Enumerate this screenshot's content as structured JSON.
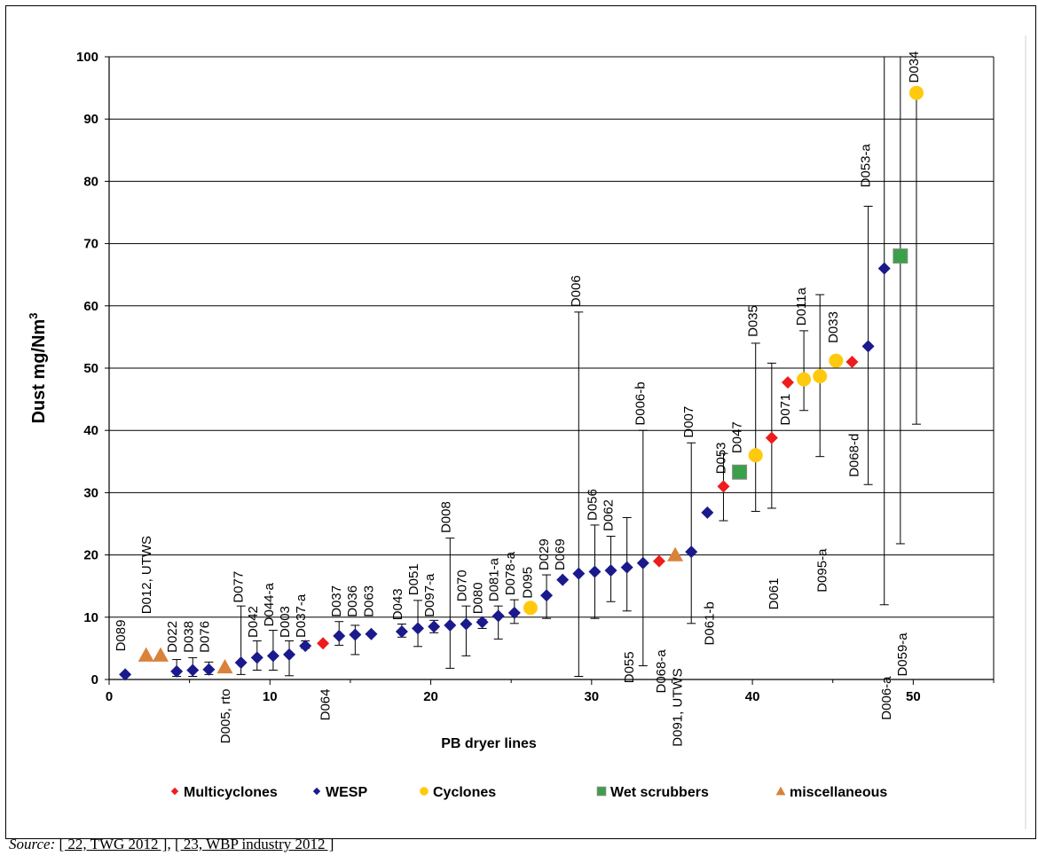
{
  "chart_data": {
    "type": "scatter",
    "xlabel": "PB dryer lines",
    "ylabel": "Dust mg/Nm",
    "ylabel_sup": "3",
    "xlim": [
      0,
      55
    ],
    "ylim": [
      0,
      100
    ],
    "xticks": [
      0,
      10,
      20,
      30,
      40,
      50
    ],
    "yticks": [
      0,
      10,
      20,
      30,
      40,
      50,
      60,
      70,
      80,
      90,
      100
    ],
    "grid": "horizontal",
    "legend_position": "bottom",
    "categories": [
      {
        "key": "multicyclones",
        "name": "Multicyclones",
        "marker": "diamond",
        "color": "#ee1c1c"
      },
      {
        "key": "wesp",
        "name": "WESP",
        "marker": "diamond",
        "color": "#1a1a8c"
      },
      {
        "key": "cyclones",
        "name": "Cyclones",
        "marker": "circle",
        "color": "#ffc90e"
      },
      {
        "key": "wet",
        "name": "Wet scrubbers",
        "marker": "square",
        "color": "#3aa04a"
      },
      {
        "key": "misc",
        "name": "miscellaneous",
        "marker": "triangle",
        "color": "#d9823b"
      }
    ],
    "points": [
      {
        "x": 1,
        "y": 0.8,
        "cat": "wesp"
      },
      {
        "x": 2.3,
        "y": 3.9,
        "cat": "misc"
      },
      {
        "x": 3.2,
        "y": 3.9,
        "cat": "misc"
      },
      {
        "x": 4.2,
        "y": 1.3,
        "cat": "wesp",
        "err": [
          0.5,
          3.2
        ]
      },
      {
        "x": 5.2,
        "y": 1.5,
        "cat": "wesp",
        "err": [
          0.5,
          3.5
        ]
      },
      {
        "x": 6.2,
        "y": 1.6,
        "cat": "wesp",
        "err": [
          0.8,
          2.8
        ]
      },
      {
        "x": 7.2,
        "y": 2.0,
        "cat": "misc"
      },
      {
        "x": 8.2,
        "y": 2.7,
        "cat": "wesp",
        "err": [
          0.8,
          11.8
        ]
      },
      {
        "x": 9.2,
        "y": 3.5,
        "cat": "wesp",
        "err": [
          1.5,
          6.2
        ]
      },
      {
        "x": 10.2,
        "y": 3.8,
        "cat": "wesp",
        "err": [
          1.5,
          7.9
        ]
      },
      {
        "x": 11.2,
        "y": 4.0,
        "cat": "wesp",
        "err": [
          0.6,
          6.2
        ]
      },
      {
        "x": 12.2,
        "y": 5.4,
        "cat": "wesp",
        "err": [
          5.0,
          6.2
        ]
      },
      {
        "x": 13.3,
        "y": 5.8,
        "cat": "multicyclones"
      },
      {
        "x": 14.3,
        "y": 7.0,
        "cat": "wesp",
        "err": [
          5.5,
          9.3
        ]
      },
      {
        "x": 15.3,
        "y": 7.2,
        "cat": "wesp",
        "err": [
          4.0,
          8.7
        ]
      },
      {
        "x": 16.3,
        "y": 7.3,
        "cat": "wesp"
      },
      {
        "x": 18.2,
        "y": 7.7,
        "cat": "wesp",
        "err": [
          6.8,
          8.9
        ]
      },
      {
        "x": 19.2,
        "y": 8.2,
        "cat": "wesp",
        "err": [
          5.3,
          12.7
        ]
      },
      {
        "x": 20.2,
        "y": 8.5,
        "cat": "wesp",
        "err": [
          7.5,
          9.5
        ]
      },
      {
        "x": 21.2,
        "y": 8.7,
        "cat": "wesp",
        "err": [
          1.8,
          22.7
        ]
      },
      {
        "x": 22.2,
        "y": 8.9,
        "cat": "wesp",
        "err": [
          3.8,
          11.8
        ]
      },
      {
        "x": 23.2,
        "y": 9.2,
        "cat": "wesp",
        "err": [
          8.2,
          9.6
        ]
      },
      {
        "x": 24.2,
        "y": 10.2,
        "cat": "wesp",
        "err": [
          6.5,
          11.8
        ]
      },
      {
        "x": 25.2,
        "y": 10.7,
        "cat": "wesp",
        "err": [
          9.0,
          12.8
        ]
      },
      {
        "x": 26.2,
        "y": 11.5,
        "cat": "cyclones"
      },
      {
        "x": 27.2,
        "y": 13.5,
        "cat": "wesp",
        "err": [
          9.8,
          16.8
        ]
      },
      {
        "x": 28.2,
        "y": 16.0,
        "cat": "wesp"
      },
      {
        "x": 29.2,
        "y": 17.0,
        "cat": "wesp",
        "err": [
          0.5,
          59.0
        ]
      },
      {
        "x": 30.2,
        "y": 17.3,
        "cat": "wesp",
        "err": [
          9.8,
          24.8
        ]
      },
      {
        "x": 31.2,
        "y": 17.5,
        "cat": "wesp",
        "err": [
          12.5,
          23.0
        ]
      },
      {
        "x": 32.2,
        "y": 18.0,
        "cat": "wesp",
        "err": [
          11.0,
          26.0
        ]
      },
      {
        "x": 33.2,
        "y": 18.7,
        "cat": "wesp",
        "err": [
          2.2,
          40.0
        ]
      },
      {
        "x": 34.2,
        "y": 19.0,
        "cat": "multicyclones"
      },
      {
        "x": 35.2,
        "y": 20.0,
        "cat": "misc"
      },
      {
        "x": 36.2,
        "y": 20.5,
        "cat": "wesp",
        "err": [
          9.0,
          38.0
        ]
      },
      {
        "x": 37.2,
        "y": 26.8,
        "cat": "wesp"
      },
      {
        "x": 38.2,
        "y": 31.0,
        "cat": "multicyclones",
        "err": [
          25.5,
          36.3
        ]
      },
      {
        "x": 39.2,
        "y": 33.3,
        "cat": "wet"
      },
      {
        "x": 40.2,
        "y": 36.0,
        "cat": "cyclones",
        "err": [
          27.0,
          54.0
        ]
      },
      {
        "x": 41.2,
        "y": 38.8,
        "cat": "multicyclones",
        "err": [
          27.5,
          50.8
        ]
      },
      {
        "x": 42.2,
        "y": 47.7,
        "cat": "multicyclones"
      },
      {
        "x": 43.2,
        "y": 48.2,
        "cat": "cyclones",
        "err": [
          43.2,
          56.0
        ]
      },
      {
        "x": 44.2,
        "y": 48.7,
        "cat": "cyclones",
        "err": [
          35.8,
          61.8
        ]
      },
      {
        "x": 45.2,
        "y": 51.2,
        "cat": "cyclones"
      },
      {
        "x": 46.2,
        "y": 51.0,
        "cat": "multicyclones"
      },
      {
        "x": 47.2,
        "y": 53.5,
        "cat": "wesp",
        "err": [
          31.3,
          76.0
        ]
      },
      {
        "x": 48.2,
        "y": 66.0,
        "cat": "wesp",
        "err": [
          12.0,
          100
        ]
      },
      {
        "x": 49.2,
        "y": 68.0,
        "cat": "wet",
        "err": [
          21.8,
          100
        ]
      },
      {
        "x": 50.2,
        "y": 94.2,
        "cat": "cyclones",
        "err": [
          41.0,
          95.0
        ]
      }
    ],
    "annotations": [
      {
        "text": "D089",
        "x": 1.0,
        "y": 4.5,
        "anchor": "start"
      },
      {
        "text": "D012, UTWS",
        "x": 2.6,
        "y": 10.5,
        "anchor": "start"
      },
      {
        "text": "D022",
        "x": 4.2,
        "y": 4.3,
        "anchor": "start"
      },
      {
        "text": "D038",
        "x": 5.2,
        "y": 4.3,
        "anchor": "start"
      },
      {
        "text": "D076",
        "x": 6.2,
        "y": 4.3,
        "anchor": "start"
      },
      {
        "text": "D005,  rto",
        "x": 7.5,
        "y": -1.5,
        "anchor": "end"
      },
      {
        "text": "D077",
        "x": 8.3,
        "y": 12.3,
        "anchor": "start"
      },
      {
        "text": "D042",
        "x": 9.2,
        "y": 6.7,
        "anchor": "start"
      },
      {
        "text": "D044-a",
        "x": 10.2,
        "y": 8.5,
        "anchor": "start"
      },
      {
        "text": "D003",
        "x": 11.2,
        "y": 6.7,
        "anchor": "start"
      },
      {
        "text": "D037-a",
        "x": 12.2,
        "y": 6.7,
        "anchor": "start"
      },
      {
        "text": "D064",
        "x": 13.7,
        "y": -1.5,
        "anchor": "end"
      },
      {
        "text": "D037",
        "x": 14.4,
        "y": 10.0,
        "anchor": "start"
      },
      {
        "text": "D036",
        "x": 15.4,
        "y": 10.0,
        "anchor": "start"
      },
      {
        "text": "D063",
        "x": 16.4,
        "y": 10.0,
        "anchor": "start"
      },
      {
        "text": "D043",
        "x": 18.2,
        "y": 9.5,
        "anchor": "start"
      },
      {
        "text": "D051",
        "x": 19.2,
        "y": 13.5,
        "anchor": "start"
      },
      {
        "text": "D097-a",
        "x": 20.2,
        "y": 10.0,
        "anchor": "start"
      },
      {
        "text": "D008",
        "x": 21.2,
        "y": 23.5,
        "anchor": "start"
      },
      {
        "text": "D070",
        "x": 22.2,
        "y": 12.5,
        "anchor": "start"
      },
      {
        "text": "D080",
        "x": 23.2,
        "y": 10.5,
        "anchor": "start"
      },
      {
        "text": "D081-a",
        "x": 24.2,
        "y": 12.5,
        "anchor": "start"
      },
      {
        "text": "D078-a",
        "x": 25.2,
        "y": 13.5,
        "anchor": "start"
      },
      {
        "text": "D095",
        "x": 26.3,
        "y": 13.0,
        "anchor": "start"
      },
      {
        "text": "D029",
        "x": 27.3,
        "y": 17.5,
        "anchor": "start"
      },
      {
        "text": "D069",
        "x": 28.3,
        "y": 17.5,
        "anchor": "start"
      },
      {
        "text": "D006",
        "x": 29.3,
        "y": 59.8,
        "anchor": "start"
      },
      {
        "text": "D056",
        "x": 30.3,
        "y": 25.5,
        "anchor": "start"
      },
      {
        "text": "D062",
        "x": 31.3,
        "y": 23.8,
        "anchor": "start"
      },
      {
        "text": "D055",
        "x": 32.6,
        "y": 4.5,
        "anchor": "end"
      },
      {
        "text": "D006-b",
        "x": 33.3,
        "y": 40.8,
        "anchor": "start"
      },
      {
        "text": "D068-a",
        "x": 34.6,
        "y": 4.8,
        "anchor": "end"
      },
      {
        "text": "D091, UTWS",
        "x": 35.6,
        "y": 1.8,
        "anchor": "end"
      },
      {
        "text": "D007",
        "x": 36.3,
        "y": 38.8,
        "anchor": "start"
      },
      {
        "text": "D061-b",
        "x": 37.6,
        "y": 12.5,
        "anchor": "end"
      },
      {
        "text": "D053",
        "x": 38.3,
        "y": 33.0,
        "anchor": "start"
      },
      {
        "text": "D047",
        "x": 39.3,
        "y": 36.3,
        "anchor": "start"
      },
      {
        "text": "D035",
        "x": 40.3,
        "y": 55.0,
        "anchor": "start"
      },
      {
        "text": "D061",
        "x": 41.6,
        "y": 16.3,
        "anchor": "end"
      },
      {
        "text": "D071",
        "x": 42.3,
        "y": 40.8,
        "anchor": "start"
      },
      {
        "text": "D011a",
        "x": 43.3,
        "y": 56.8,
        "anchor": "start"
      },
      {
        "text": "D095-a",
        "x": 44.6,
        "y": 21.0,
        "anchor": "end"
      },
      {
        "text": "D033",
        "x": 45.3,
        "y": 54.0,
        "anchor": "start"
      },
      {
        "text": "D068-d",
        "x": 46.6,
        "y": 39.5,
        "anchor": "end"
      },
      {
        "text": "D053-a",
        "x": 47.3,
        "y": 79.0,
        "anchor": "start"
      },
      {
        "text": "D006-a",
        "x": 48.6,
        "y": 0.5,
        "anchor": "end"
      },
      {
        "text": "D059-a",
        "x": 49.6,
        "y": 7.5,
        "anchor": "end"
      },
      {
        "text": "D034",
        "x": 50.3,
        "y": 95.8,
        "anchor": "start"
      }
    ]
  },
  "source": {
    "prefix": "Source:",
    "ref1": "[ 22, TWG 2012 ]",
    "separator": ",",
    "ref2": "[ 23, WBP industry 2012 ]"
  }
}
